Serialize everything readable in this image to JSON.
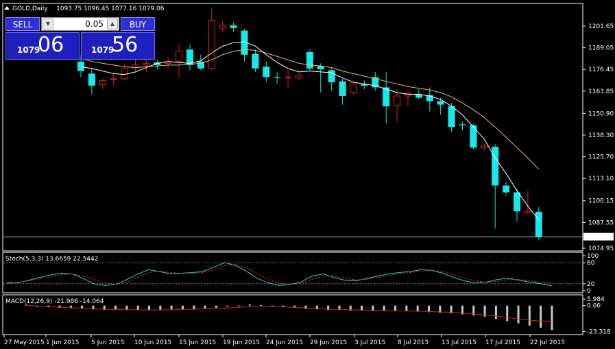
{
  "header": {
    "symbol_label": "GOLD,Daily",
    "ohlc": "1093.75 1096.45 1077.16 1079.06"
  },
  "trade_panel": {
    "sell_label": "SELL",
    "buy_label": "BUY",
    "lot_value": "0.05",
    "bid": {
      "small": "1079",
      "big": "06"
    },
    "ask": {
      "small": "1079",
      "big": "56"
    }
  },
  "chart_data": [
    {
      "type": "candlestick",
      "title": "GOLD,Daily",
      "ylim": [
        1074.95,
        1212.0
      ],
      "price_ticks": [
        "1201.65",
        "1189.05",
        "1176.45",
        "1163.85",
        "1150.90",
        "1138.30",
        "1125.70",
        "1113.10",
        "1100.15",
        "1087.55",
        "1074.95"
      ],
      "current_price": "1079.06",
      "candles": [
        {
          "o": 1181.0,
          "h": 1185.0,
          "l": 1172.0,
          "c": 1175.5
        },
        {
          "o": 1174.0,
          "h": 1177.0,
          "l": 1162.0,
          "c": 1167.0
        },
        {
          "o": 1167.5,
          "h": 1171.0,
          "l": 1165.0,
          "c": 1170.0
        },
        {
          "o": 1170.5,
          "h": 1174.5,
          "l": 1167.0,
          "c": 1171.0
        },
        {
          "o": 1171.0,
          "h": 1180.0,
          "l": 1170.0,
          "c": 1177.0
        },
        {
          "o": 1177.5,
          "h": 1183.0,
          "l": 1175.5,
          "c": 1179.0
        },
        {
          "o": 1179.0,
          "h": 1186.0,
          "l": 1175.0,
          "c": 1180.0
        },
        {
          "o": 1180.5,
          "h": 1182.0,
          "l": 1176.5,
          "c": 1179.0
        },
        {
          "o": 1180.0,
          "h": 1183.5,
          "l": 1177.0,
          "c": 1181.0
        },
        {
          "o": 1181.0,
          "h": 1191.0,
          "l": 1172.0,
          "c": 1187.0
        },
        {
          "o": 1188.0,
          "h": 1191.0,
          "l": 1176.0,
          "c": 1179.0
        },
        {
          "o": 1181.0,
          "h": 1185.0,
          "l": 1176.0,
          "c": 1177.0
        },
        {
          "o": 1177.0,
          "h": 1212.0,
          "l": 1176.0,
          "c": 1205.0
        },
        {
          "o": 1200.5,
          "h": 1205.0,
          "l": 1198.0,
          "c": 1202.0
        },
        {
          "o": 1202.0,
          "h": 1204.0,
          "l": 1198.0,
          "c": 1200.5
        },
        {
          "o": 1199.0,
          "h": 1200.0,
          "l": 1181.0,
          "c": 1185.0
        },
        {
          "o": 1185.5,
          "h": 1188.0,
          "l": 1175.0,
          "c": 1177.0
        },
        {
          "o": 1178.0,
          "h": 1181.0,
          "l": 1169.0,
          "c": 1172.0
        },
        {
          "o": 1172.0,
          "h": 1175.0,
          "l": 1168.0,
          "c": 1171.5
        },
        {
          "o": 1171.5,
          "h": 1176.0,
          "l": 1166.0,
          "c": 1172.0
        },
        {
          "o": 1171.5,
          "h": 1174.0,
          "l": 1170.0,
          "c": 1173.0
        },
        {
          "o": 1186.5,
          "h": 1188.0,
          "l": 1176.0,
          "c": 1177.0
        },
        {
          "o": 1178.5,
          "h": 1180.0,
          "l": 1163.0,
          "c": 1176.5
        },
        {
          "o": 1176.0,
          "h": 1177.0,
          "l": 1164.0,
          "c": 1169.0
        },
        {
          "o": 1169.5,
          "h": 1171.0,
          "l": 1156.0,
          "c": 1161.0
        },
        {
          "o": 1163.0,
          "h": 1169.0,
          "l": 1162.0,
          "c": 1168.5
        },
        {
          "o": 1168.0,
          "h": 1170.0,
          "l": 1165.0,
          "c": 1167.0
        },
        {
          "o": 1172.0,
          "h": 1175.0,
          "l": 1164.0,
          "c": 1166.0
        },
        {
          "o": 1166.0,
          "h": 1175.0,
          "l": 1145.0,
          "c": 1155.0
        },
        {
          "o": 1155.5,
          "h": 1165.0,
          "l": 1146.0,
          "c": 1161.0
        },
        {
          "o": 1161.0,
          "h": 1164.0,
          "l": 1155.0,
          "c": 1162.5
        },
        {
          "o": 1162.0,
          "h": 1165.0,
          "l": 1159.0,
          "c": 1160.0
        },
        {
          "o": 1161.5,
          "h": 1166.0,
          "l": 1152.0,
          "c": 1158.0
        },
        {
          "o": 1158.0,
          "h": 1160.0,
          "l": 1150.0,
          "c": 1156.0
        },
        {
          "o": 1155.0,
          "h": 1157.0,
          "l": 1140.0,
          "c": 1143.0
        },
        {
          "o": 1144.5,
          "h": 1146.0,
          "l": 1141.0,
          "c": 1144.0
        },
        {
          "o": 1144.0,
          "h": 1145.0,
          "l": 1130.0,
          "c": 1131.0
        },
        {
          "o": 1131.0,
          "h": 1133.0,
          "l": 1129.0,
          "c": 1132.0
        },
        {
          "o": 1131.5,
          "h": 1133.0,
          "l": 1084.0,
          "c": 1109.0
        },
        {
          "o": 1109.0,
          "h": 1111.0,
          "l": 1103.0,
          "c": 1105.0
        },
        {
          "o": 1105.0,
          "h": 1107.0,
          "l": 1088.0,
          "c": 1094.0
        },
        {
          "o": 1093.0,
          "h": 1106.0,
          "l": 1092.0,
          "c": 1094.0
        },
        {
          "o": 1093.75,
          "h": 1096.45,
          "l": 1077.16,
          "c": 1079.06
        }
      ],
      "ma_fast": [
        1178.0,
        1177.0,
        1175.5,
        1174.0,
        1173.5,
        1175.0,
        1177.5,
        1180.0,
        1181.0,
        1180.5,
        1180.0,
        1181.5,
        1186.0,
        1190.0,
        1192.0,
        1192.5,
        1190.0,
        1185.0,
        1180.5,
        1177.0,
        1175.0,
        1175.5,
        1175.0,
        1174.5,
        1171.5,
        1169.0,
        1168.0,
        1167.0,
        1165.0,
        1163.0,
        1162.0,
        1162.0,
        1161.0,
        1159.0,
        1155.0,
        1150.0,
        1143.0,
        1136.0,
        1125.0,
        1116.0,
        1106.0,
        1097.0,
        1089.0
      ],
      "ma_slow": [
        1183.0,
        1181.0,
        1180.0,
        1179.0,
        1178.0,
        1177.5,
        1178.0,
        1178.5,
        1179.0,
        1179.0,
        1179.5,
        1180.0,
        1182.0,
        1185.0,
        1187.0,
        1188.0,
        1187.5,
        1186.0,
        1184.0,
        1182.0,
        1180.0,
        1179.0,
        1178.5,
        1177.5,
        1175.5,
        1174.0,
        1172.5,
        1171.0,
        1169.5,
        1168.0,
        1166.5,
        1165.5,
        1164.5,
        1163.0,
        1160.5,
        1157.0,
        1153.0,
        1148.5,
        1143.0,
        1137.0,
        1131.0,
        1125.0,
        1118.5
      ]
    },
    {
      "type": "line",
      "title": "Stoch(5,3,3) 13.6659 22.5442",
      "ylim": [
        0,
        100
      ],
      "tick_labels": [
        "100",
        "80",
        "20",
        "0"
      ],
      "series": [
        {
          "color": "#18d8d8",
          "values": [
            25,
            22,
            30,
            38,
            45,
            50,
            48,
            35,
            20,
            15,
            18,
            32,
            48,
            60,
            55,
            48,
            50,
            52,
            55,
            68,
            80,
            72,
            55,
            35,
            22,
            15,
            18,
            25,
            42,
            48,
            38,
            30,
            28,
            35,
            42,
            48,
            52,
            55,
            60,
            58,
            50,
            38,
            28,
            22,
            25,
            32,
            36,
            30,
            24,
            20,
            14
          ]
        },
        {
          "color": "#d83030",
          "values": [
            20,
            24,
            28,
            34,
            40,
            46,
            48,
            42,
            32,
            22,
            18,
            24,
            38,
            52,
            56,
            52,
            50,
            50,
            52,
            60,
            72,
            75,
            65,
            48,
            32,
            22,
            18,
            20,
            32,
            42,
            42,
            36,
            31,
            32,
            38,
            44,
            48,
            52,
            56,
            58,
            55,
            46,
            36,
            28,
            24,
            27,
            32,
            32,
            28,
            24,
            22
          ]
        }
      ]
    },
    {
      "type": "bar",
      "title": "MACD(12,26,9) -21.986 -14.064",
      "ylim": [
        -25.0,
        6.0
      ],
      "tick_labels": [
        "5.984",
        "0.00",
        "-23.318"
      ],
      "histogram": [
        1.0,
        -1.0,
        -1.5,
        -2.0,
        -2.5,
        -3.0,
        -3.5,
        -4.0,
        -4.0,
        -4.0,
        -4.0,
        -4.0,
        -4.0,
        -3.5,
        -3.5,
        -3.0,
        -2.5,
        -2.0,
        -1.0,
        0.0,
        1.0,
        0.5,
        -0.5,
        -1.5,
        -2.0,
        -3.0,
        -3.5,
        -4.0,
        -4.0,
        -4.5,
        -4.5,
        -5.0,
        -5.0,
        -5.0,
        -5.0,
        -5.5,
        -6.0,
        -6.5,
        -7.0,
        -8.0,
        -9.0,
        -10.0,
        -12.0,
        -14.0,
        -16.0,
        -18.0,
        -20.0,
        -22.0
      ],
      "signal": [
        0.5,
        -0.5,
        -1.0,
        -1.5,
        -2.0,
        -2.5,
        -3.0,
        -3.3,
        -3.6,
        -3.8,
        -3.9,
        -4.0,
        -4.0,
        -3.8,
        -3.6,
        -3.4,
        -3.0,
        -2.7,
        -2.2,
        -1.6,
        -1.0,
        -0.6,
        -0.8,
        -1.2,
        -1.7,
        -2.3,
        -2.8,
        -3.2,
        -3.5,
        -3.8,
        -4.1,
        -4.4,
        -4.6,
        -4.8,
        -4.9,
        -5.1,
        -5.4,
        -5.8,
        -6.2,
        -6.8,
        -7.5,
        -8.3,
        -9.5,
        -10.8,
        -12.0,
        -13.2,
        -14.0,
        -14.06
      ]
    }
  ],
  "x_axis_labels": [
    "27 May 2015",
    "1 Jun 2015",
    "5 Jun 2015",
    "10 Jun 2015",
    "15 Jun 2015",
    "19 Jun 2015",
    "24 Jun 2015",
    "29 Jun 2015",
    "3 Jul 2015",
    "8 Jul 2015",
    "13 Jul 2015",
    "17 Jul 2015",
    "22 Jul 2015"
  ],
  "colors": {
    "bull": "#000000",
    "bull_border": "#e02020",
    "bear": "#18e8e8",
    "ma_fast": "#ffffff",
    "ma_slow": "#e8c060",
    "grid": "#7a7a7a"
  }
}
